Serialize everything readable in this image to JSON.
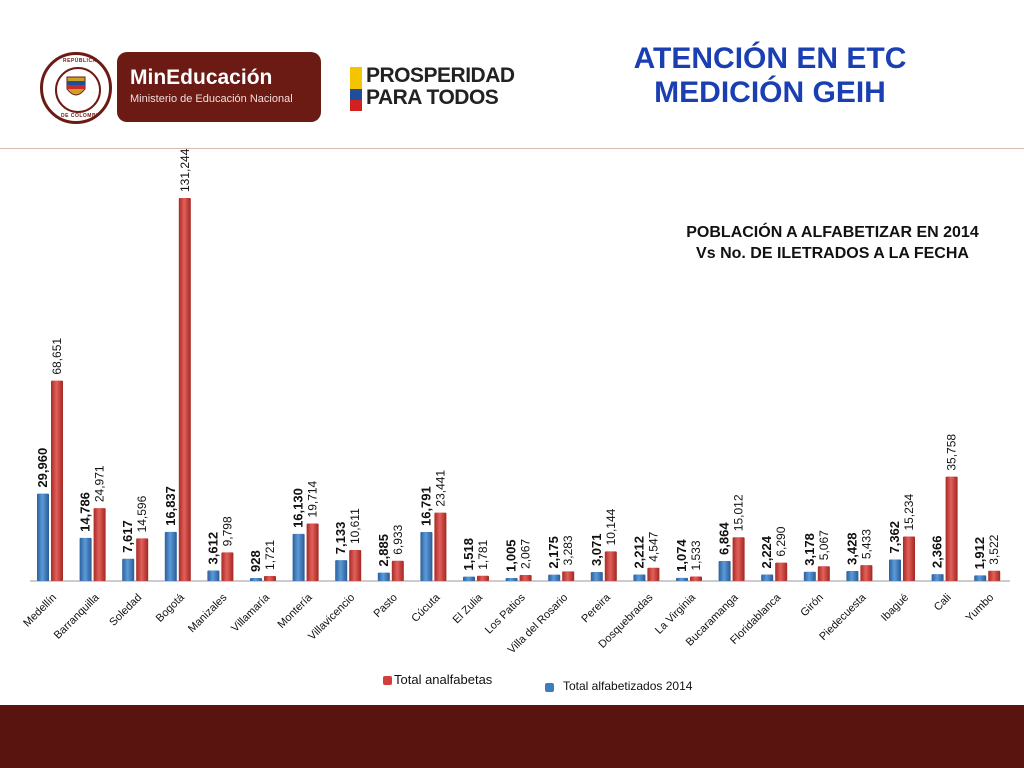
{
  "header": {
    "seal_text_top": "REPÚBLICA",
    "seal_text_bottom": "DE COLOMBIA",
    "ministry_name": "MinEducación",
    "ministry_sub": "Ministerio de Educación Nacional",
    "slogan_line1": "PROSPERIDAD",
    "slogan_line2": "PARA TODOS",
    "title_line1": "ATENCIÓN EN ETC",
    "title_line2": "MEDICIÓN GEIH"
  },
  "colors": {
    "brand": "#6b1a14",
    "title": "#1a3fb3",
    "bar_blue": "#3f7bc0",
    "bar_red": "#d1403c",
    "footer": "#5a1410"
  },
  "chart_data": {
    "type": "bar",
    "title_line1": "POBLACIÓN A ALFABETIZAR EN 2014",
    "title_line2": "Vs No. DE ILETRADOS A LA FECHA",
    "xlabel": "",
    "ylabel": "",
    "ylim": [
      0,
      135000
    ],
    "grid": false,
    "legend_position": "bottom",
    "categories": [
      "Medellín",
      "Barranquilla",
      "Soledad",
      "Bogotá",
      "Manizales",
      "Villamaría",
      "Montería",
      "Villavicencio",
      "Pasto",
      "Cúcuta",
      "El Zulia",
      "Los Patios",
      "Villa del Rosario",
      "Pereira",
      "Dosquebradas",
      "La Virginia",
      "Bucaramanga",
      "Floridablanca",
      "Girón",
      "Piedecuesta",
      "Ibagué",
      "Cali",
      "Yumbo"
    ],
    "series": [
      {
        "name": "Total alfabetizados 2014",
        "color": "#3f7bc0",
        "values": [
          29960,
          14786,
          7617,
          16837,
          3612,
          928,
          16130,
          7133,
          2885,
          16791,
          1518,
          1005,
          2175,
          3071,
          2212,
          1074,
          6864,
          2224,
          3178,
          3428,
          7362,
          2366,
          1912
        ],
        "labels": [
          "29,960",
          "14,786",
          "7,617",
          "16,837",
          "3,612",
          "928",
          "16,130",
          "7,133",
          "2,885",
          "16,791",
          "1,518",
          "1,005",
          "2,175",
          "3,071",
          "2,212",
          "1,074",
          "6,864",
          "2,224",
          "3,178",
          "3,428",
          "7,362",
          "2,366",
          "1,912"
        ]
      },
      {
        "name": "Total analfabetas",
        "color": "#d1403c",
        "values": [
          68651,
          24971,
          14596,
          131244,
          9798,
          1721,
          19714,
          10611,
          6933,
          23441,
          1781,
          2067,
          3283,
          10144,
          4547,
          1533,
          15012,
          6290,
          5067,
          5433,
          15234,
          35758,
          3522
        ],
        "labels": [
          "68,651",
          "24,971",
          "14,596",
          "131,244",
          "9,798",
          "1,721",
          "19,714",
          "10,611",
          "6,933",
          "23,441",
          "1,781",
          "2,067",
          "3,283",
          "10,144",
          "4,547",
          "1,533",
          "15,012",
          "6,290",
          "5,067",
          "5,433",
          "15,234",
          "35,758",
          "3,522"
        ]
      }
    ]
  }
}
